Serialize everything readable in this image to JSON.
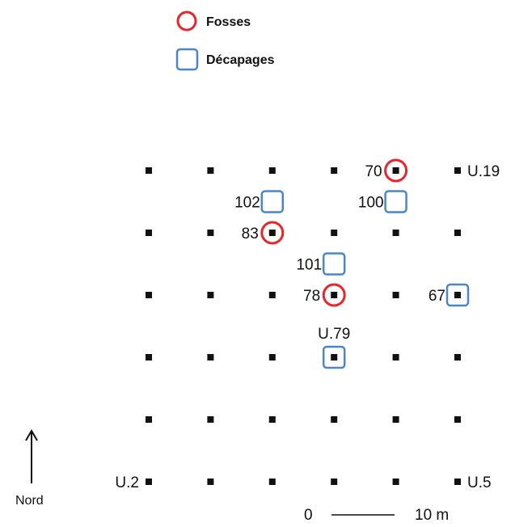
{
  "legend": {
    "fosses": {
      "label": "Fosses",
      "color": "#e8262a",
      "icon": "red-circle-icon"
    },
    "decapages": {
      "label": "Décapages",
      "color": "#4a86c8",
      "icon": "blue-square-icon"
    }
  },
  "grid": {
    "columns": 6,
    "rows": 6,
    "marker_icon": "black-square-icon"
  },
  "fosses": [
    {
      "label": "70",
      "col": 4,
      "row": 0
    },
    {
      "label": "83",
      "col": 2,
      "row": 1
    },
    {
      "label": "78",
      "col": 3,
      "row": 2
    }
  ],
  "decapages": [
    {
      "label": "102",
      "col": 2,
      "row": 0.5
    },
    {
      "label": "100",
      "col": 4,
      "row": 0.5
    },
    {
      "label": "101",
      "col": 3,
      "row": 1.5
    },
    {
      "label": "67",
      "col": 5,
      "row": 2
    },
    {
      "label": "U.79",
      "col": 3,
      "row": 3
    }
  ],
  "unit_labels": [
    {
      "label": "U.19",
      "col": 5,
      "row": 0,
      "side": "right"
    },
    {
      "label": "U.2",
      "col": 0,
      "row": 5,
      "side": "left"
    },
    {
      "label": "U.5",
      "col": 5,
      "row": 5,
      "side": "right"
    }
  ],
  "north": {
    "label": "Nord",
    "icon": "north-arrow-icon"
  },
  "scale": {
    "start": "0",
    "end": "10 m"
  }
}
